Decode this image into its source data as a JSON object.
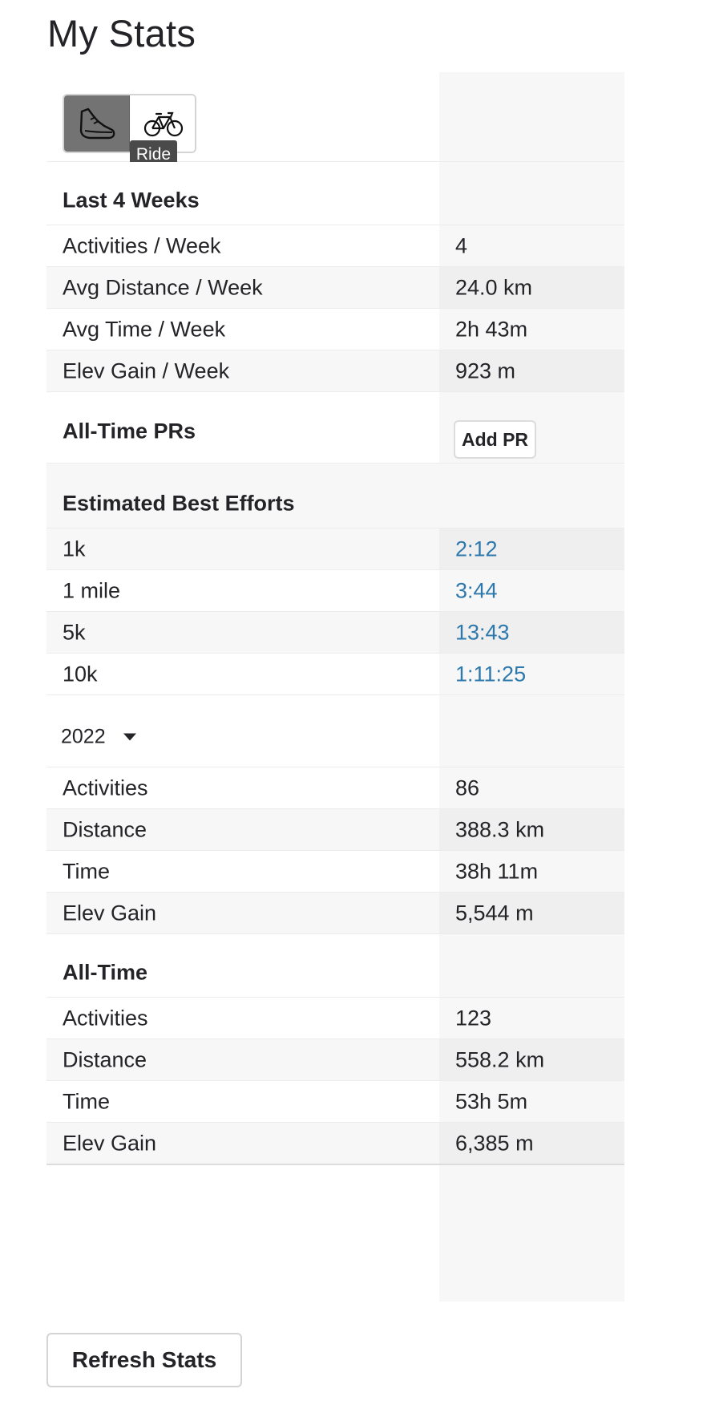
{
  "page": {
    "title": "My Stats"
  },
  "sport_toggle": {
    "run_icon": "running-shoe-icon",
    "ride_icon": "bicycle-icon",
    "tooltip": "Ride"
  },
  "last4": {
    "heading": "Last 4 Weeks",
    "rows": [
      {
        "label": "Activities / Week",
        "value": "4"
      },
      {
        "label": "Avg Distance / Week",
        "value": "24.0 km"
      },
      {
        "label": "Avg Time / Week",
        "value": "2h 43m"
      },
      {
        "label": "Elev Gain / Week",
        "value": "923 m"
      }
    ]
  },
  "prs": {
    "heading": "All-Time PRs",
    "add_label": "Add PR"
  },
  "best": {
    "heading": "Estimated Best Efforts",
    "rows": [
      {
        "label": "1k",
        "value": "2:12"
      },
      {
        "label": "1 mile",
        "value": "3:44"
      },
      {
        "label": "5k",
        "value": "13:43"
      },
      {
        "label": "10k",
        "value": "1:11:25"
      }
    ]
  },
  "year": {
    "selected": "2022",
    "rows": [
      {
        "label": "Activities",
        "value": "86"
      },
      {
        "label": "Distance",
        "value": "388.3 km"
      },
      {
        "label": "Time",
        "value": "38h 11m"
      },
      {
        "label": "Elev Gain",
        "value": "5,544 m"
      }
    ]
  },
  "alltime": {
    "heading": "All-Time",
    "rows": [
      {
        "label": "Activities",
        "value": "123"
      },
      {
        "label": "Distance",
        "value": "558.2 km"
      },
      {
        "label": "Time",
        "value": "53h 5m"
      },
      {
        "label": "Elev Gain",
        "value": "6,385 m"
      }
    ]
  },
  "actions": {
    "refresh_label": "Refresh Stats"
  },
  "colors": {
    "link": "#2d78ad",
    "toggle_active": "#737373"
  }
}
